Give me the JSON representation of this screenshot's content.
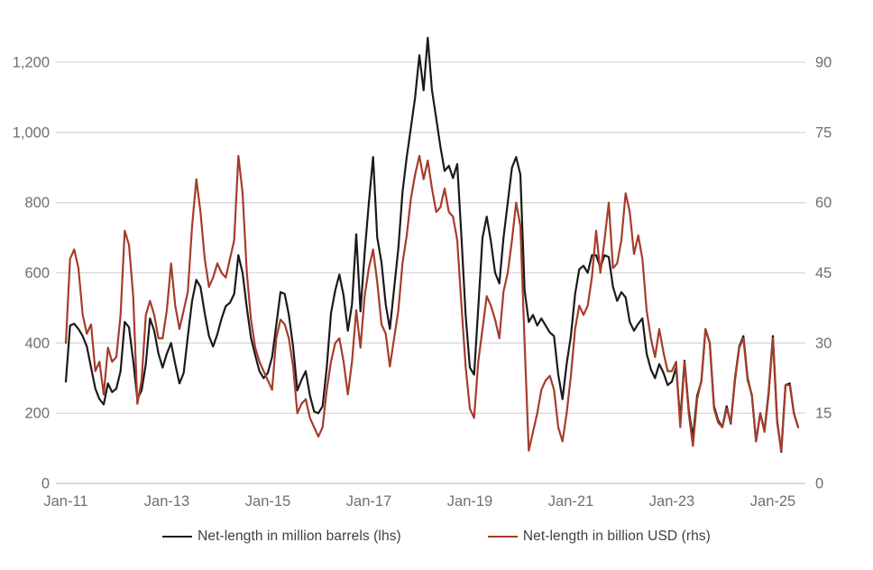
{
  "chart_data": {
    "type": "line",
    "title": "",
    "x_unit": "month",
    "x": [
      "Jan-11",
      "Feb-11",
      "Mar-11",
      "Apr-11",
      "May-11",
      "Jun-11",
      "Jul-11",
      "Aug-11",
      "Sep-11",
      "Oct-11",
      "Nov-11",
      "Dec-11",
      "Jan-12",
      "Feb-12",
      "Mar-12",
      "Apr-12",
      "May-12",
      "Jun-12",
      "Jul-12",
      "Aug-12",
      "Sep-12",
      "Oct-12",
      "Nov-12",
      "Dec-12",
      "Jan-13",
      "Feb-13",
      "Mar-13",
      "Apr-13",
      "May-13",
      "Jun-13",
      "Jul-13",
      "Aug-13",
      "Sep-13",
      "Oct-13",
      "Nov-13",
      "Dec-13",
      "Jan-14",
      "Feb-14",
      "Mar-14",
      "Apr-14",
      "May-14",
      "Jun-14",
      "Jul-14",
      "Aug-14",
      "Sep-14",
      "Oct-14",
      "Nov-14",
      "Dec-14",
      "Jan-15",
      "Feb-15",
      "Mar-15",
      "Apr-15",
      "May-15",
      "Jun-15",
      "Jul-15",
      "Aug-15",
      "Sep-15",
      "Oct-15",
      "Nov-15",
      "Dec-15",
      "Jan-16",
      "Feb-16",
      "Mar-16",
      "Apr-16",
      "May-16",
      "Jun-16",
      "Jul-16",
      "Aug-16",
      "Sep-16",
      "Oct-16",
      "Nov-16",
      "Dec-16",
      "Jan-17",
      "Feb-17",
      "Mar-17",
      "Apr-17",
      "May-17",
      "Jun-17",
      "Jul-17",
      "Aug-17",
      "Sep-17",
      "Oct-17",
      "Nov-17",
      "Dec-17",
      "Jan-18",
      "Feb-18",
      "Mar-18",
      "Apr-18",
      "May-18",
      "Jun-18",
      "Jul-18",
      "Aug-18",
      "Sep-18",
      "Oct-18",
      "Nov-18",
      "Dec-18",
      "Jan-19",
      "Feb-19",
      "Mar-19",
      "Apr-19",
      "May-19",
      "Jun-19",
      "Jul-19",
      "Aug-19",
      "Sep-19",
      "Oct-19",
      "Nov-19",
      "Dec-19",
      "Jan-20",
      "Feb-20",
      "Mar-20",
      "Apr-20",
      "May-20",
      "Jun-20",
      "Jul-20",
      "Aug-20",
      "Sep-20",
      "Oct-20",
      "Nov-20",
      "Dec-20",
      "Jan-21",
      "Feb-21",
      "Mar-21",
      "Apr-21",
      "May-21",
      "Jun-21",
      "Jul-21",
      "Aug-21",
      "Sep-21",
      "Oct-21",
      "Nov-21",
      "Dec-21",
      "Jan-22",
      "Feb-22",
      "Mar-22",
      "Apr-22",
      "May-22",
      "Jun-22",
      "Jul-22",
      "Aug-22",
      "Sep-22",
      "Oct-22",
      "Nov-22",
      "Dec-22",
      "Jan-23",
      "Feb-23",
      "Mar-23",
      "Apr-23",
      "May-23",
      "Jun-23",
      "Jul-23",
      "Aug-23",
      "Sep-23",
      "Oct-23",
      "Nov-23",
      "Dec-23",
      "Jan-24",
      "Feb-24",
      "Mar-24",
      "Apr-24",
      "May-24",
      "Jun-24",
      "Jul-24",
      "Aug-24",
      "Sep-24",
      "Oct-24",
      "Nov-24",
      "Dec-24",
      "Jan-25",
      "Feb-25",
      "Mar-25",
      "Apr-25",
      "May-25",
      "Jun-25",
      "Jul-25"
    ],
    "x_ticks": [
      "Jan-11",
      "Jan-13",
      "Jan-15",
      "Jan-17",
      "Jan-19",
      "Jan-21",
      "Jan-23",
      "Jan-25"
    ],
    "series": [
      {
        "name": "Net-length in million barrels (lhs)",
        "axis": "left",
        "color": "#1a1a1a",
        "values": [
          290,
          450,
          455,
          440,
          420,
          390,
          330,
          270,
          240,
          225,
          285,
          260,
          270,
          320,
          460,
          445,
          350,
          240,
          265,
          340,
          470,
          435,
          370,
          330,
          370,
          400,
          340,
          285,
          315,
          420,
          520,
          580,
          560,
          485,
          420,
          390,
          425,
          470,
          505,
          515,
          540,
          650,
          600,
          500,
          415,
          365,
          320,
          300,
          315,
          360,
          450,
          545,
          540,
          480,
          390,
          265,
          295,
          320,
          250,
          205,
          200,
          220,
          330,
          485,
          550,
          595,
          535,
          435,
          510,
          710,
          490,
          655,
          800,
          930,
          700,
          630,
          510,
          440,
          555,
          670,
          830,
          930,
          1015,
          1100,
          1220,
          1120,
          1270,
          1120,
          1040,
          960,
          890,
          905,
          870,
          910,
          700,
          480,
          330,
          310,
          500,
          700,
          760,
          690,
          600,
          570,
          700,
          800,
          900,
          930,
          880,
          550,
          460,
          480,
          450,
          470,
          450,
          430,
          420,
          310,
          240,
          340,
          420,
          540,
          610,
          620,
          600,
          650,
          650,
          615,
          650,
          645,
          560,
          520,
          545,
          530,
          460,
          435,
          455,
          470,
          370,
          325,
          300,
          340,
          315,
          280,
          290,
          330,
          180,
          350,
          210,
          130,
          250,
          290,
          440,
          400,
          220,
          180,
          160,
          220,
          170,
          300,
          390,
          420,
          300,
          250,
          120,
          200,
          150,
          260,
          420,
          180,
          90,
          280,
          285,
          200,
          160
        ]
      },
      {
        "name": "Net-length in billion USD (rhs)",
        "axis": "right",
        "color": "#a63c2c",
        "values": [
          30,
          48,
          50,
          46,
          36,
          32,
          34,
          24,
          26,
          19,
          29,
          26,
          27,
          36,
          54,
          51,
          40,
          17,
          22,
          36,
          39,
          36,
          31,
          31,
          37,
          47,
          38,
          33,
          37,
          41,
          55,
          65,
          58,
          48,
          42,
          44,
          47,
          45,
          44,
          48,
          52,
          70,
          62,
          45,
          35,
          29,
          26,
          24,
          22,
          20,
          31,
          35,
          34,
          31,
          25,
          15,
          17,
          18,
          14,
          12,
          10,
          12,
          20,
          26,
          30,
          31,
          26,
          19,
          26,
          37,
          29,
          40,
          46,
          50,
          43,
          34,
          32,
          25,
          31,
          37,
          47,
          53,
          61,
          66,
          70,
          65,
          69,
          63,
          58,
          59,
          63,
          58,
          57,
          52,
          38,
          25,
          16,
          14,
          26,
          33,
          40,
          38,
          35,
          31,
          41,
          45,
          52,
          60,
          55,
          30,
          7,
          11,
          15,
          20,
          22,
          23,
          20,
          12,
          9,
          15,
          23,
          33,
          38,
          36,
          38,
          44,
          54,
          45,
          52,
          60,
          46,
          47,
          52,
          62,
          58,
          49,
          53,
          48,
          37,
          31,
          27,
          33,
          28,
          24,
          24,
          26,
          12,
          26,
          15,
          8,
          18,
          22,
          33,
          30,
          16,
          13,
          12,
          16,
          13,
          22,
          29,
          31,
          22,
          19,
          9,
          15,
          11,
          19,
          31,
          13,
          7,
          21,
          21,
          15,
          12
        ]
      }
    ],
    "y_left": {
      "min": 0,
      "max": 1200,
      "tick_step": 200,
      "tick_labels": [
        "0",
        "200",
        "400",
        "600",
        "800",
        "1,000",
        "1,200"
      ]
    },
    "y_right": {
      "min": 0,
      "max": 90,
      "tick_step": 15,
      "tick_labels": [
        "0",
        "15",
        "30",
        "45",
        "60",
        "75",
        "90"
      ]
    },
    "grid": true,
    "legend_position": "bottom",
    "background": "#ffffff",
    "gridline_color": "#d9d9d9",
    "baseline_color": "#c0c0c0",
    "axis_label_color": "#6f6f6f"
  }
}
